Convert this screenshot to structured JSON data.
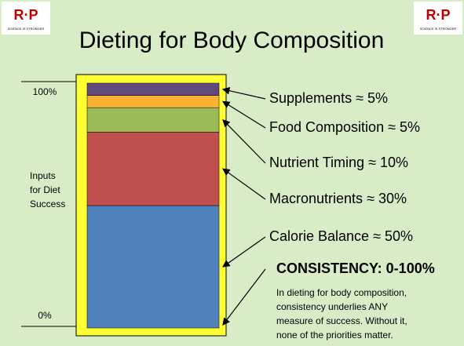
{
  "chart_data": {
    "type": "stacked_bar",
    "title": "Dieting for Body Composition",
    "logo_text": "SCIENCE IS STRONGER",
    "y_label_lines": [
      "Inputs",
      "for Diet",
      "Success"
    ],
    "ylim": [
      0,
      100
    ],
    "yticks": [
      {
        "value": 0,
        "label": "0%"
      },
      {
        "value": 100,
        "label": "100%"
      }
    ],
    "series": [
      {
        "name": "Calorie Balance",
        "color": "#4f81bd",
        "values": [
          50
        ],
        "value_labels": [
          "≈ 50%"
        ]
      },
      {
        "name": "Macronutrients",
        "color": "#c0504d",
        "values": [
          30
        ],
        "value_labels": [
          "≈ 30%"
        ]
      },
      {
        "name": "Nutrient Timing",
        "color": "#9bbb59",
        "values": [
          10
        ],
        "value_labels": [
          "≈ 10%"
        ]
      },
      {
        "name": "Food Composition",
        "color": "#f9b233",
        "values": [
          5
        ],
        "value_labels": [
          "≈ 5%"
        ]
      },
      {
        "name": "Supplements",
        "color": "#604a7b",
        "values": [
          5
        ],
        "value_labels": [
          "≈ 5%"
        ]
      }
    ],
    "bar_border_color": "#ffff33",
    "emphasis": "CONSISTENCY: 0-100%",
    "note_lines": [
      "In dieting for body composition,",
      "consistency underlies ANY",
      "measure of success. Without it,",
      "none of the priorities matter."
    ]
  }
}
